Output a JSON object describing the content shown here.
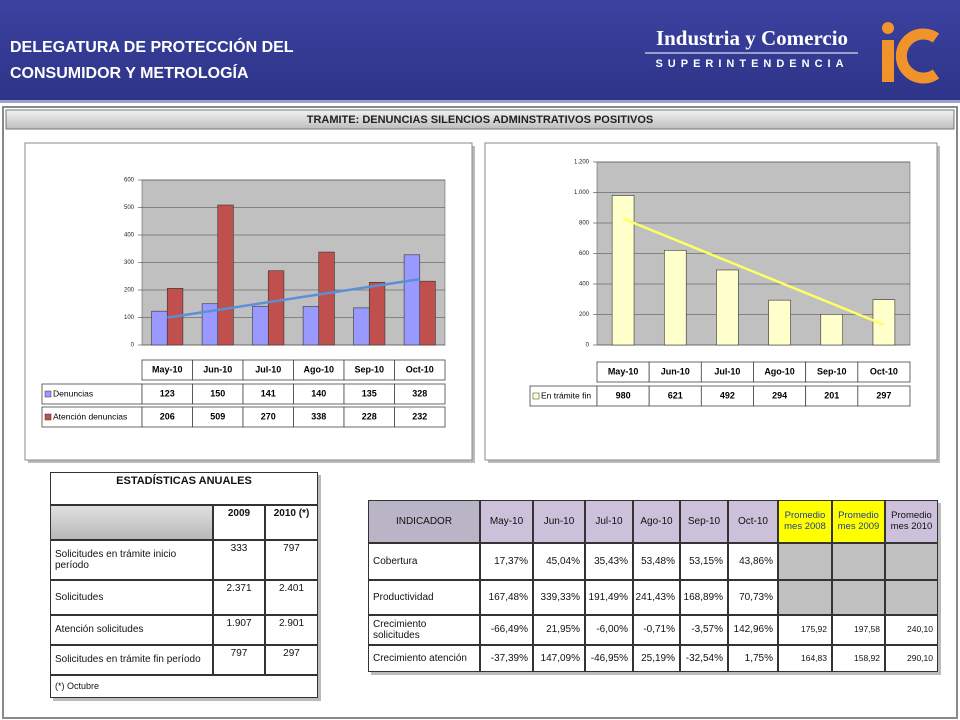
{
  "header": {
    "title": [
      "DELEGATURA DE PROTECCIÓN DEL",
      "CONSUMIDOR Y METROLOGÍA"
    ],
    "brand": "Industria y Comercio",
    "brand_sub": "SUPERINTENDENCIA"
  },
  "section_title": "TRAMITE: DENUNCIAS SILENCIOS ADMINSTRATIVOS POSITIVOS",
  "chart_data": [
    {
      "type": "bar",
      "categories": [
        "May-10",
        "Jun-10",
        "Jul-10",
        "Ago-10",
        "Sep-10",
        "Oct-10"
      ],
      "series": [
        {
          "name": "Denuncias",
          "color": "#9999ff",
          "values": [
            123,
            150,
            141,
            140,
            135,
            328
          ],
          "trendline": "#5b8fd6"
        },
        {
          "name": "Atención denuncias",
          "color": "#c0504d",
          "values": [
            206,
            509,
            270,
            338,
            228,
            232
          ]
        }
      ],
      "ylim": [
        0,
        600
      ],
      "yticks": [
        0,
        100,
        200,
        300,
        400,
        500,
        600
      ],
      "grid": true
    },
    {
      "type": "bar",
      "categories": [
        "May-10",
        "Jun-10",
        "Jul-10",
        "Ago-10",
        "Sep-10",
        "Oct-10"
      ],
      "series": [
        {
          "name": "En trámite fin",
          "color": "#ffffcc",
          "values": [
            980,
            621,
            492,
            294,
            201,
            297
          ],
          "trendline": "#ffff66"
        }
      ],
      "ylim": [
        0,
        1200
      ],
      "yticks": [
        0,
        200,
        400,
        600,
        800,
        {
          "value": 1000,
          "label": "1.000"
        },
        {
          "value": 1200,
          "label": "1.200"
        }
      ],
      "grid": true
    }
  ],
  "annual_stats": {
    "title": "ESTADÍSTICAS ANUALES",
    "columns": [
      "2009",
      "2010 (*)"
    ],
    "rows": [
      [
        "Solicitudes en trámite inicio período",
        "333",
        "797"
      ],
      [
        "Solicitudes",
        "2.371",
        "2.401"
      ],
      [
        "Atención solicitudes",
        "1.907",
        "2.901"
      ],
      [
        "Solicitudes en trámite fin período",
        "797",
        "297"
      ]
    ],
    "footnote": "(*) Octubre"
  },
  "indicators": {
    "columns": [
      "INDICADOR",
      "May-10",
      "Jun-10",
      "Jul-10",
      "Ago-10",
      "Sep-10",
      "Oct-10",
      "Promedio mes 2008",
      "Promedio mes 2009",
      "Promedio mes 2010"
    ],
    "rows": [
      [
        "Cobertura",
        "17,37%",
        "45,04%",
        "35,43%",
        "53,48%",
        "53,15%",
        "43,86%"
      ],
      [
        "Productividad",
        "167,48%",
        "339,33%",
        "191,49%",
        "241,43%",
        "168,89%",
        "70,73%"
      ],
      [
        "Crecimiento solicitudes",
        "-66,49%",
        "21,95%",
        "-6,00%",
        "-0,71%",
        "-3,57%",
        "142,96%",
        "175,92",
        "197,58",
        "240,10"
      ],
      [
        "Crecimiento atención",
        "-37,39%",
        "147,09%",
        "-46,95%",
        "25,19%",
        "-32,54%",
        "1,75%",
        "164,83",
        "158,92",
        "290,10"
      ]
    ]
  }
}
